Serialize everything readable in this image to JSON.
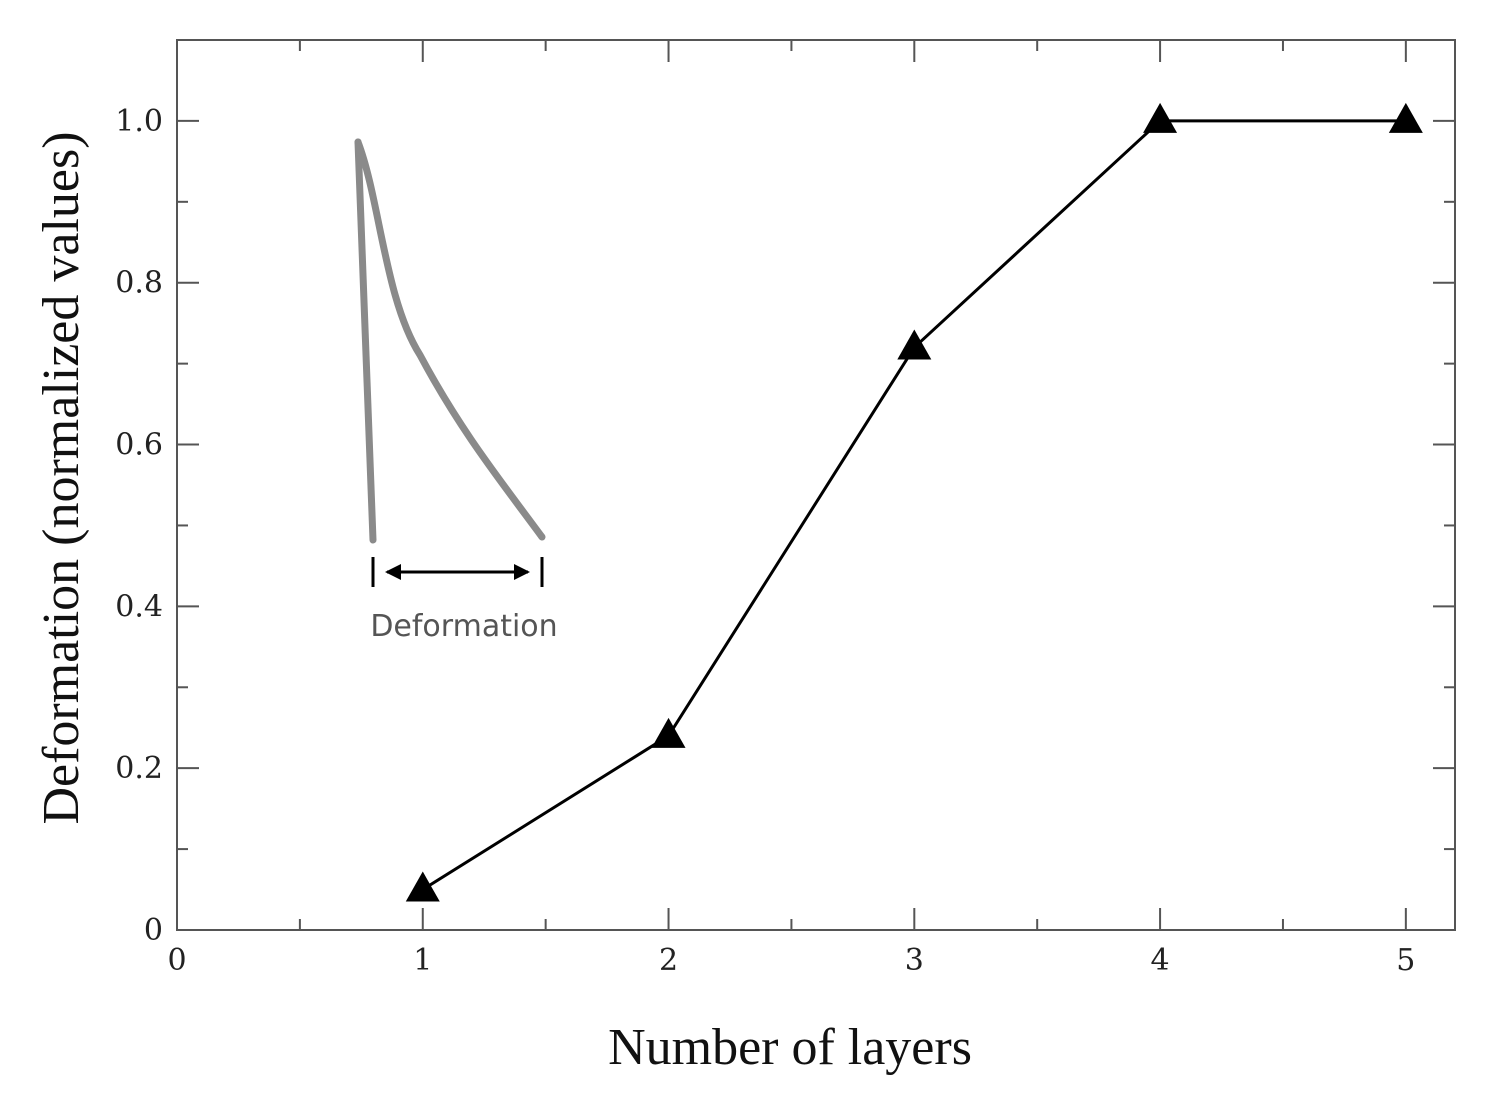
{
  "chart_data": {
    "type": "line",
    "xlabel": "Number of layers",
    "ylabel": "Deformation (normalized values)",
    "xlim": [
      0,
      5.2
    ],
    "ylim": [
      0,
      1.1
    ],
    "x_ticks": [
      0,
      1,
      2,
      3,
      4,
      5
    ],
    "x_tick_labels": [
      "0",
      "1",
      "2",
      "3",
      "4",
      "5"
    ],
    "y_ticks": [
      0,
      0.2,
      0.4,
      0.6,
      0.8,
      1.0
    ],
    "y_tick_labels": [
      "0",
      "0.2",
      "0.4",
      "0.6",
      "0.8",
      "1.0"
    ],
    "grid": false,
    "series": [
      {
        "marker": "triangle",
        "color": "#000000",
        "x": [
          1,
          2,
          3,
          4,
          5
        ],
        "y": [
          0.05,
          0.24,
          0.72,
          1.0,
          1.0
        ]
      }
    ],
    "inset": {
      "label": "Deformation",
      "color": "#888888"
    }
  }
}
